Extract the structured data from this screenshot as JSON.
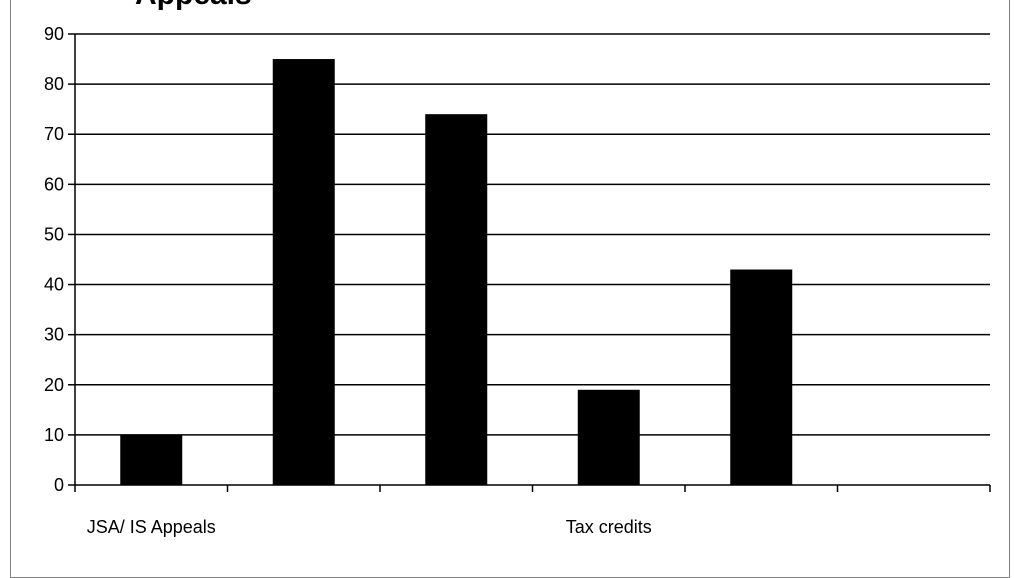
{
  "chart_data": {
    "type": "bar",
    "title": "Appeals",
    "categories": [
      "JSA/ IS Appeals",
      "",
      "",
      "Tax credits",
      "",
      ""
    ],
    "series": [
      {
        "values": [
          10,
          85,
          74,
          19,
          43,
          null
        ]
      }
    ],
    "ylim": [
      0,
      90
    ],
    "yticks": [
      0,
      10,
      20,
      30,
      40,
      50,
      60,
      70,
      80,
      90
    ],
    "grid": true,
    "legend": "none",
    "colors": {
      "bar": "#000000",
      "grid": "#000000",
      "axis": "#000000",
      "frame": "#808080"
    }
  }
}
